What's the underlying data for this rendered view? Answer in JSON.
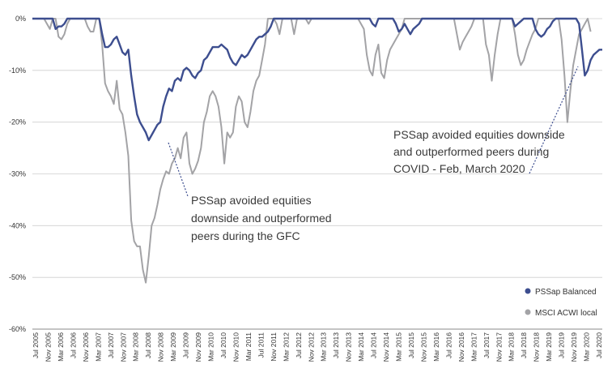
{
  "chart_data": {
    "type": "line",
    "title": "",
    "xlabel": "",
    "ylabel": "",
    "ylim": [
      -60,
      0
    ],
    "y_ticks": [
      "0%",
      "-10%",
      "-20%",
      "-30%",
      "-40%",
      "-50%",
      "-60%"
    ],
    "y_tick_values": [
      0,
      -10,
      -20,
      -30,
      -40,
      -50,
      -60
    ],
    "x_ticks": [
      "Jul 2005",
      "Nov 2005",
      "Mar 2006",
      "Jul 2006",
      "Nov 2006",
      "Mar 2007",
      "Jul 2007",
      "Nov 2007",
      "Mar 2008",
      "Jul 2008",
      "Nov 2008",
      "Mar 2009",
      "Jul 2009",
      "Nov 2009",
      "Mar 2010",
      "Jul 2010",
      "Nov 2010",
      "Mar 2011",
      "Jul 2011",
      "Nov 2011",
      "Mar 2012",
      "Jul 2012",
      "Nov 2012",
      "Mar 2013",
      "Jul 2013",
      "Nov 2013",
      "Mar 2014",
      "Jul 2014",
      "Nov 2014",
      "Mar 2015",
      "Jul 2015",
      "Nov 2015",
      "Mar 2016",
      "Jul 2016",
      "Nov 2016",
      "Mar 2017",
      "Jul 2017",
      "Nov 2017",
      "Mar 2018",
      "Jul 2018",
      "Nov 2018",
      "Mar 2019",
      "Jul 2019",
      "Nov 2019",
      "Mar 2020",
      "Jul 2020"
    ],
    "grid": "horizontal",
    "legend_position": "bottom-right",
    "series": [
      {
        "name": "PSSap Balanced",
        "color": "#3d4e8f",
        "values": [
          0,
          0,
          0,
          0,
          0,
          0,
          0,
          0,
          -2,
          -1.5,
          -1.5,
          -1,
          0,
          0,
          0,
          0,
          0,
          0,
          0,
          0,
          0,
          0,
          0,
          0,
          -3,
          -5.5,
          -5.5,
          -5,
          -4,
          -3.5,
          -5,
          -6.5,
          -7,
          -6,
          -11,
          -15,
          -18.5,
          -20,
          -21,
          -22,
          -23.5,
          -22.5,
          -21.5,
          -20.5,
          -20,
          -17,
          -15,
          -13.5,
          -14,
          -12,
          -11.5,
          -12,
          -10,
          -9.5,
          -10,
          -11,
          -11.5,
          -10.5,
          -10,
          -8,
          -7.5,
          -6.5,
          -5.5,
          -5.5,
          -5.5,
          -5,
          -5.5,
          -6,
          -7.5,
          -8.5,
          -9,
          -8,
          -7,
          -7.5,
          -7,
          -6,
          -5,
          -4,
          -3.5,
          -3.5,
          -3,
          -2.5,
          -1.5,
          0,
          0,
          0,
          0,
          0,
          0,
          0,
          0,
          0,
          0,
          0,
          0,
          0,
          0,
          0,
          0,
          0,
          0,
          0,
          0,
          0,
          0,
          0,
          0,
          0,
          0,
          0,
          0,
          0,
          0,
          0,
          0,
          0,
          0,
          -1,
          -1.5,
          0,
          0,
          0,
          0,
          0,
          0,
          -1,
          -2.5,
          -2,
          -1,
          -2,
          -3,
          -2,
          -1.5,
          -1,
          0,
          0,
          0,
          0,
          0,
          0,
          0,
          0,
          0,
          0,
          0,
          0,
          0,
          0,
          0,
          0,
          0,
          0,
          0,
          0,
          0,
          0,
          0,
          0,
          0,
          0,
          0,
          0,
          0,
          0,
          0,
          0,
          -1.5,
          -1,
          -0.5,
          0,
          0,
          0,
          0,
          -2,
          -3,
          -3.5,
          -3,
          -2,
          -1.5,
          -0.5,
          0,
          0,
          0,
          0,
          0,
          0,
          0,
          0,
          -1,
          -6,
          -11,
          -10,
          -8,
          -7,
          -6.5,
          -6,
          -6
        ]
      },
      {
        "name": "MSCI ACWI local",
        "color": "#a3a3a6",
        "values": [
          0,
          0,
          0,
          0,
          0,
          -1,
          -2,
          0,
          0,
          -3.5,
          -4,
          -3,
          -1,
          0,
          0,
          0,
          0,
          0,
          0,
          -1.5,
          -2.5,
          -2.5,
          0,
          0,
          -5,
          -12.5,
          -14,
          -15,
          -16.5,
          -12,
          -17.5,
          -18.5,
          -22,
          -26.5,
          -39,
          -43,
          -44,
          -44,
          -48.5,
          -51,
          -46,
          -40,
          -38.5,
          -36,
          -33,
          -31,
          -29.5,
          -30,
          -28,
          -27,
          -25,
          -27,
          -23,
          -22,
          -28,
          -30,
          -29,
          -27.5,
          -25,
          -20,
          -18,
          -15,
          -14,
          -15,
          -17,
          -21,
          -28,
          -22,
          -23,
          -22,
          -17,
          -15,
          -16,
          -20,
          -21,
          -18,
          -14,
          -12,
          -11,
          -8,
          -5,
          0,
          0,
          0,
          -1,
          -3,
          0,
          0,
          0,
          0,
          -3,
          0,
          0,
          0,
          0,
          -1,
          0,
          0,
          0,
          0,
          0,
          0,
          0,
          0,
          0,
          0,
          0,
          0,
          0,
          0,
          0,
          0,
          0,
          -1,
          -2,
          -7,
          -10,
          -11,
          -7,
          -5,
          -10.5,
          -11.5,
          -8,
          -6,
          -5,
          -4,
          -3,
          -2,
          0,
          0,
          0,
          0,
          0,
          0,
          0,
          0,
          0,
          0,
          0,
          0,
          0,
          0,
          0,
          0,
          0,
          0,
          -3,
          -6,
          -4.5,
          -3.5,
          -2.5,
          -1.5,
          0,
          0,
          0,
          0,
          -5,
          -7,
          -12,
          -7,
          -3,
          0,
          0,
          0,
          0,
          0,
          -3,
          -7,
          -9,
          -8,
          -6,
          -4.5,
          -3,
          -2,
          0,
          0,
          0,
          0,
          0,
          0,
          0,
          0,
          -4,
          -11,
          -20,
          -14,
          -9,
          -6,
          -3,
          -2,
          -1,
          0,
          -2.5
        ]
      }
    ],
    "annotations": [
      {
        "lines": [
          "PSSap avoided equities",
          "downside and outperformed",
          "peers during the GFC"
        ]
      },
      {
        "lines": [
          "PSSap avoided equities downside",
          "and outperformed peers during",
          "COVID - Feb, March 2020"
        ]
      }
    ]
  }
}
